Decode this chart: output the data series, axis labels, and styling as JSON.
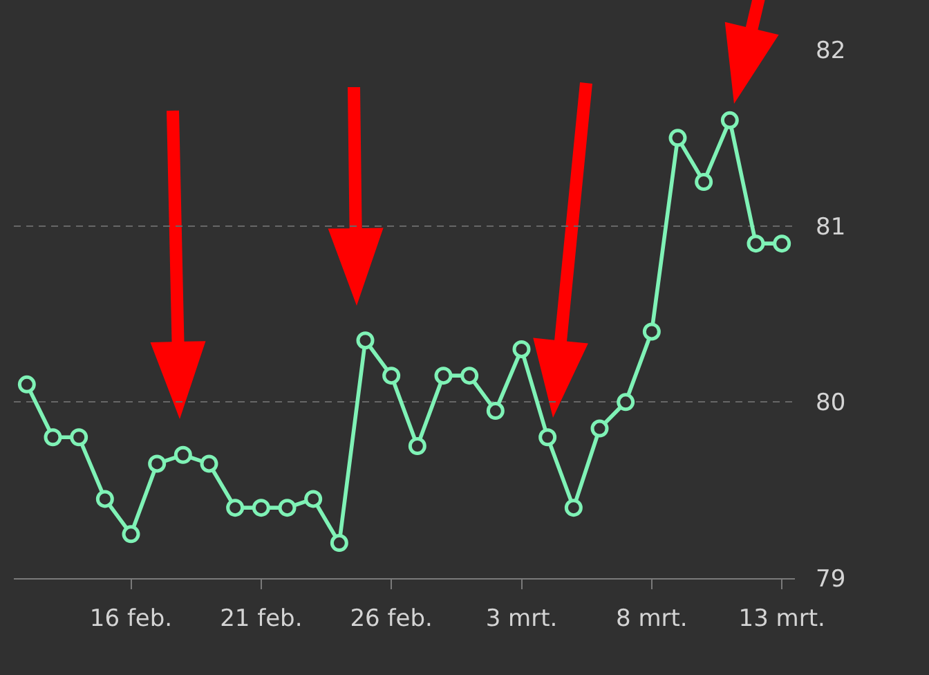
{
  "chart_data": {
    "type": "line",
    "x": [
      "--02-12",
      "--02-13",
      "--02-14",
      "--02-15",
      "--02-16",
      "--02-17",
      "--02-18",
      "--02-19",
      "--02-20",
      "--02-21",
      "--02-22",
      "--02-23",
      "--02-24",
      "--02-25",
      "--02-26",
      "--02-27",
      "--02-28",
      "--03-01",
      "--03-02",
      "--03-03",
      "--03-04",
      "--03-05",
      "--03-06",
      "--03-07",
      "--03-08",
      "--03-09",
      "--03-10",
      "--03-11",
      "--03-12",
      "--03-13"
    ],
    "values": [
      80.1,
      79.8,
      79.8,
      79.45,
      79.25,
      79.65,
      79.7,
      79.65,
      79.4,
      79.4,
      79.4,
      79.45,
      79.2,
      80.35,
      80.15,
      79.75,
      80.15,
      80.15,
      79.95,
      80.3,
      79.8,
      79.4,
      79.85,
      80.0,
      80.4,
      81.5,
      81.25,
      81.6,
      80.9,
      80.9
    ],
    "color": "#7ff2b6",
    "xlim": [
      "--02-11T12:00",
      "--03-13T12:00"
    ],
    "xticks": [
      {
        "value": "--02-16",
        "label": "16 feb."
      },
      {
        "value": "--02-21",
        "label": "21 feb."
      },
      {
        "value": "--02-26",
        "label": "26 feb."
      },
      {
        "value": "--03-03",
        "label": "3 mrt."
      },
      {
        "value": "--03-08",
        "label": "8 mrt."
      },
      {
        "value": "--03-13",
        "label": "13 mrt."
      }
    ],
    "ylim": [
      79,
      82
    ],
    "yticks": [
      79,
      80,
      81,
      82
    ],
    "grid": "y",
    "marker": "circle",
    "line_style": "solid"
  }
}
